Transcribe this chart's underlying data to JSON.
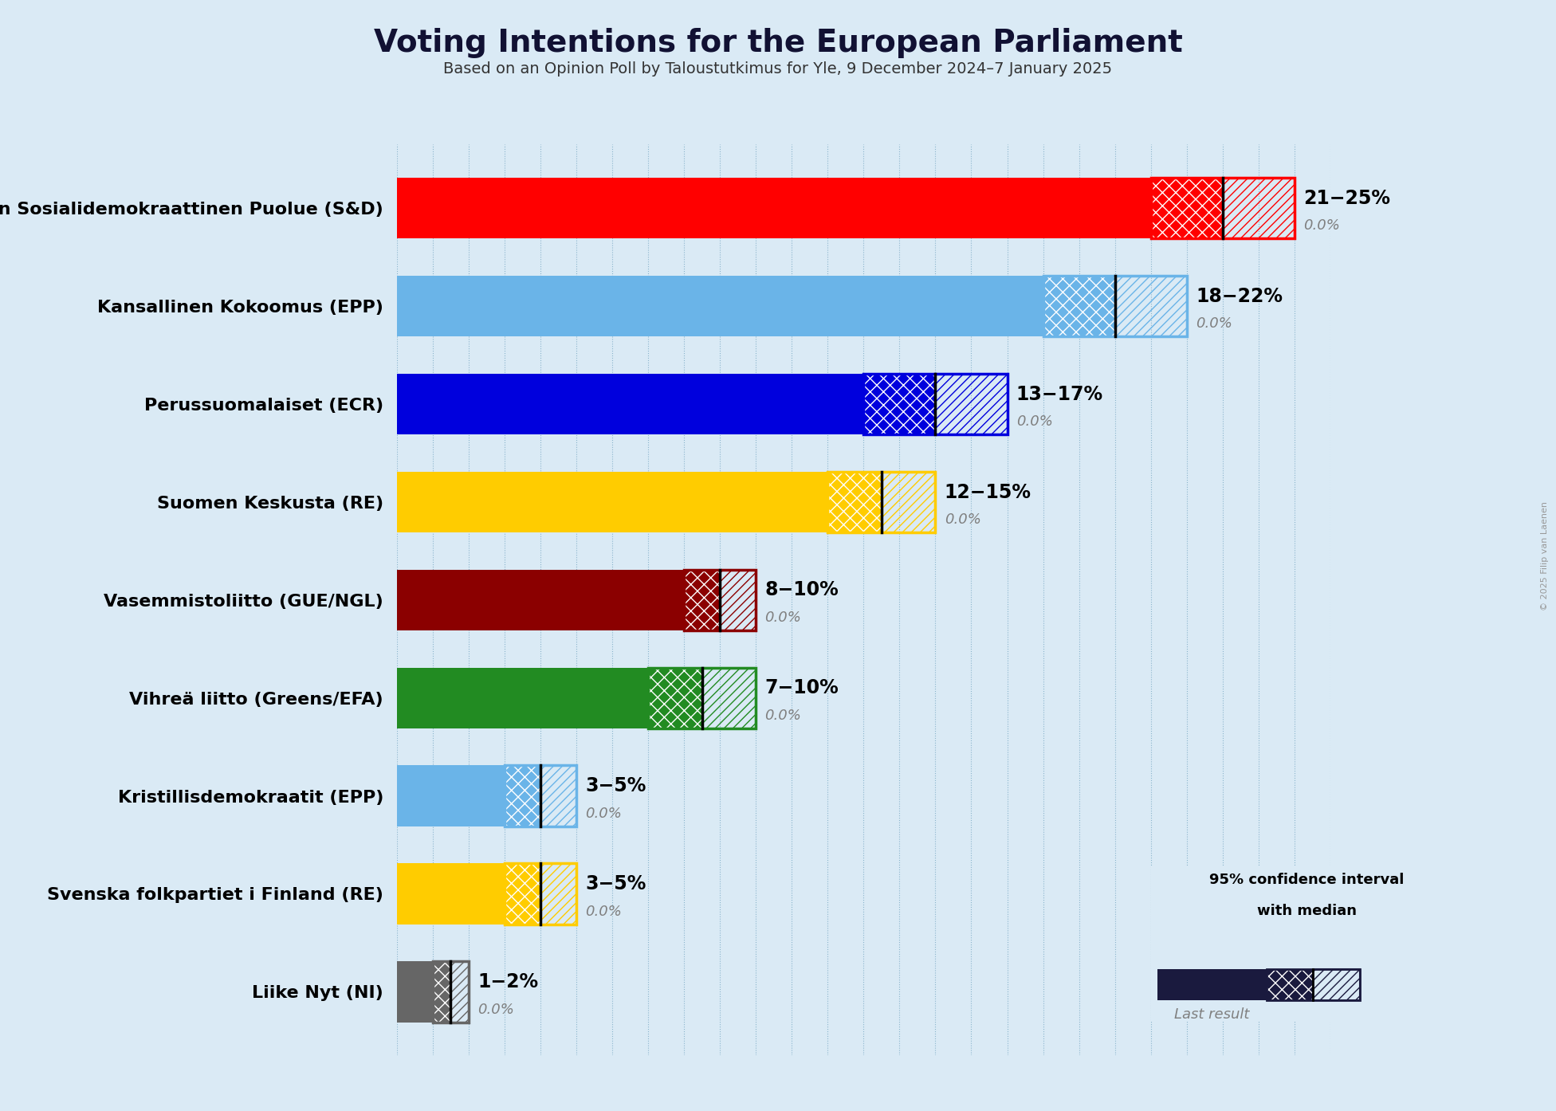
{
  "title": "Voting Intentions for the European Parliament",
  "subtitle": "Based on an Opinion Poll by Taloustutkimus for Yle, 9 December 2024–7 January 2025",
  "copyright": "© 2025 Filip van Laenen",
  "background_color": "#daeaf5",
  "parties": [
    {
      "name": "Suomen Sosialidemokraattinen Puolue (S&D)",
      "color": "#ff0000",
      "median": 23,
      "low": 21,
      "high": 25,
      "last": 0.0,
      "label": "21−25%"
    },
    {
      "name": "Kansallinen Kokoomus (EPP)",
      "color": "#6ab4e8",
      "median": 20,
      "low": 18,
      "high": 22,
      "last": 0.0,
      "label": "18−22%"
    },
    {
      "name": "Perussuomalaiset (ECR)",
      "color": "#0000dd",
      "median": 15,
      "low": 13,
      "high": 17,
      "last": 0.0,
      "label": "13−17%"
    },
    {
      "name": "Suomen Keskusta (RE)",
      "color": "#ffcc00",
      "median": 13.5,
      "low": 12,
      "high": 15,
      "last": 0.0,
      "label": "12−15%"
    },
    {
      "name": "Vasemmistoliitto (GUE/NGL)",
      "color": "#8b0000",
      "median": 9,
      "low": 8,
      "high": 10,
      "last": 0.0,
      "label": "8−10%"
    },
    {
      "name": "Vihreä liitto (Greens/EFA)",
      "color": "#228b22",
      "median": 8.5,
      "low": 7,
      "high": 10,
      "last": 0.0,
      "label": "7−10%"
    },
    {
      "name": "Kristillisdemokraatit (EPP)",
      "color": "#6ab4e8",
      "median": 4,
      "low": 3,
      "high": 5,
      "last": 0.0,
      "label": "3−5%"
    },
    {
      "name": "Svenska folkpartiet i Finland (RE)",
      "color": "#ffcc00",
      "median": 4,
      "low": 3,
      "high": 5,
      "last": 0.0,
      "label": "3−5%"
    },
    {
      "name": "Liike Nyt (NI)",
      "color": "#666666",
      "median": 1.5,
      "low": 1,
      "high": 2,
      "last": 0.0,
      "label": "1−2%"
    }
  ],
  "xlim": [
    0,
    26
  ],
  "bar_height": 0.62,
  "legend_dark_color": "#1a1a3e",
  "legend_label1": "95% confidence interval",
  "legend_label2": "with median",
  "legend_label3": "Last result"
}
